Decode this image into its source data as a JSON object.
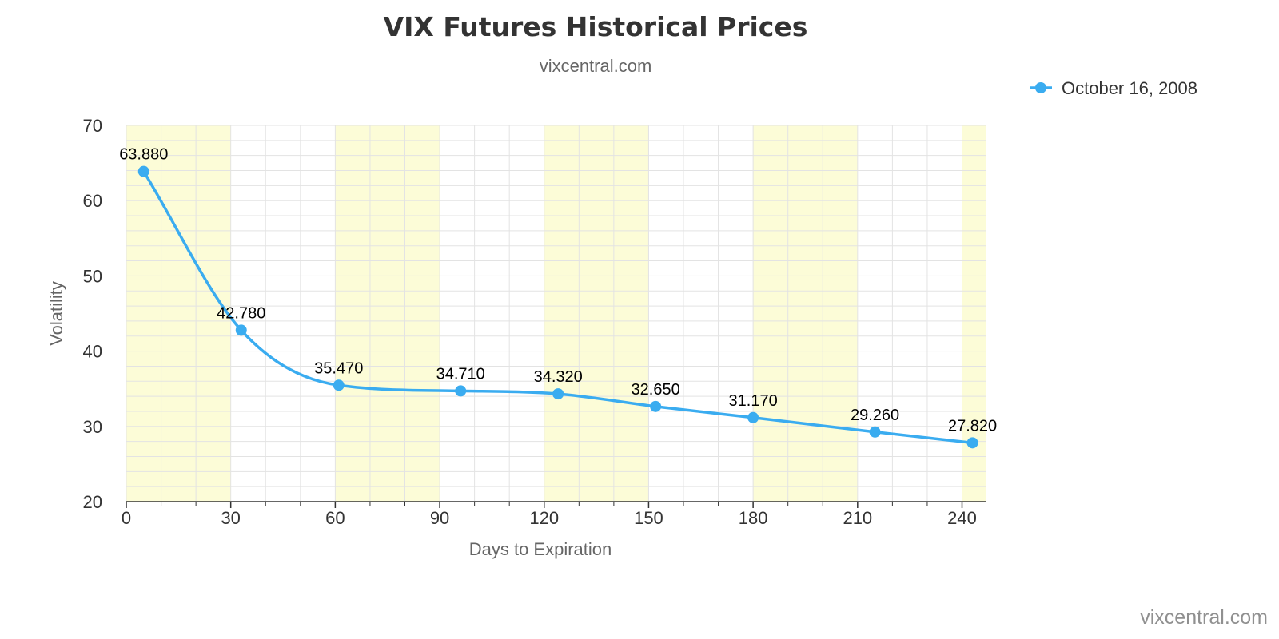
{
  "chart_data": {
    "type": "line",
    "title": "VIX Futures Historical Prices",
    "subtitle": "vixcentral.com",
    "credit": "vixcentral.com",
    "xlabel": "Days to Expiration",
    "ylabel": "Volatility",
    "xlim": [
      0,
      247
    ],
    "ylim": [
      20,
      70
    ],
    "x_ticks": [
      0,
      30,
      60,
      90,
      120,
      150,
      180,
      210,
      240
    ],
    "y_ticks": [
      20,
      30,
      40,
      50,
      60,
      70
    ],
    "grid": true,
    "legend_position": "top-right",
    "shaded_x_bands": [
      [
        0,
        30
      ],
      [
        60,
        90
      ],
      [
        120,
        150
      ],
      [
        180,
        210
      ],
      [
        240,
        247
      ]
    ],
    "colors": {
      "series": "#3AACF0",
      "band": "#FCFCD7",
      "grid": "#E3E3E3",
      "axis": "#333333"
    },
    "series": [
      {
        "name": "October 16, 2008",
        "x": [
          5,
          33,
          61,
          96,
          124,
          152,
          180,
          215,
          243
        ],
        "y": [
          63.88,
          42.78,
          35.47,
          34.71,
          34.32,
          32.65,
          31.17,
          29.26,
          27.82
        ],
        "labels": [
          "63.880",
          "42.780",
          "35.470",
          "34.710",
          "34.320",
          "32.650",
          "31.170",
          "29.260",
          "27.820"
        ]
      }
    ]
  }
}
